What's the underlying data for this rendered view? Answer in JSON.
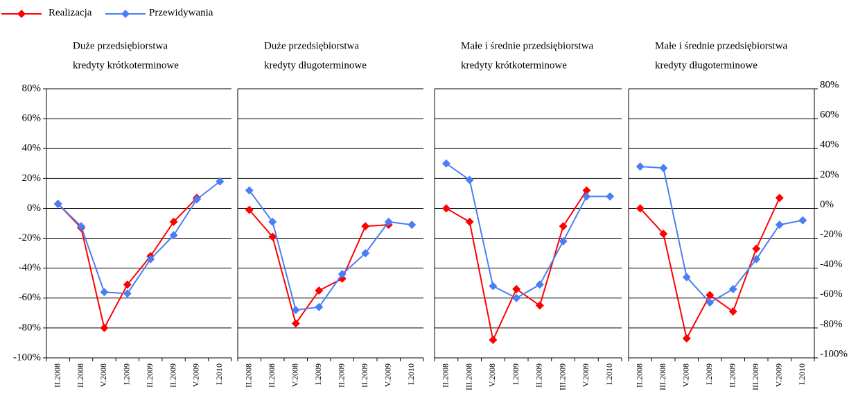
{
  "legend": [
    {
      "name": "Realizacja",
      "color": "#ff0000"
    },
    {
      "name": "Przewidywania",
      "color": "#4a7ef5"
    }
  ],
  "chart_data": [
    {
      "type": "line",
      "title": "Duże przedsiębiorstwa",
      "subtitle": "kredyty krótkoterminowe",
      "categories": [
        "II.2008",
        "II.2008",
        "V.2008",
        "I.2009",
        "II.2009",
        "II.2009",
        "V.2009",
        "I.2010"
      ],
      "series": [
        {
          "color": "#ff0000",
          "values": [
            3,
            -13,
            -80,
            -51,
            -32,
            -9,
            7,
            null
          ]
        },
        {
          "color": "#4a7ef5",
          "values": [
            3,
            -12,
            -56,
            -57,
            -34,
            -18,
            6,
            18
          ]
        }
      ],
      "ylim": [
        -100,
        80
      ],
      "yaxis_side": "left",
      "yticks": [
        {
          "value": 80,
          "label": "80%"
        },
        {
          "value": 60,
          "label": "60%"
        },
        {
          "value": 40,
          "label": "40%"
        },
        {
          "value": 20,
          "label": "20%"
        },
        {
          "value": 0,
          "label": "0%"
        },
        {
          "value": -20,
          "label": "-20%"
        },
        {
          "value": -40,
          "label": "-40%"
        },
        {
          "value": -60,
          "label": "-60%"
        },
        {
          "value": -80,
          "label": "-80%"
        },
        {
          "value": -100,
          "label": "-100%"
        }
      ]
    },
    {
      "type": "line",
      "title": "Duże przedsiębiorstwa",
      "subtitle": "kredyty długoterminowe",
      "categories": [
        "II.2008",
        "II.2008",
        "V.2008",
        "I.2009",
        "II.2009",
        "II.2009",
        "V.2009",
        "I.2010"
      ],
      "series": [
        {
          "color": "#ff0000",
          "values": [
            -1,
            -19,
            -77,
            -55,
            -47,
            -12,
            -11,
            null
          ]
        },
        {
          "color": "#4a7ef5",
          "values": [
            12,
            -9,
            -68,
            -66,
            -44,
            -30,
            -9,
            -11
          ]
        }
      ],
      "ylim": [
        -100,
        80
      ],
      "yticks": [
        80,
        60,
        40,
        20,
        0,
        -20,
        -40,
        -60,
        -80,
        -100
      ]
    },
    {
      "type": "line",
      "title": "Małe i średnie  przedsiębiorstwa",
      "subtitle": "kredyty krótkoterminowe",
      "categories": [
        "II.2008",
        "III.2008",
        "V.2008",
        "I.2009",
        "II.2009",
        "III.2009",
        "V.2009",
        "I.2010"
      ],
      "series": [
        {
          "color": "#ff0000",
          "values": [
            0,
            -9,
            -88,
            -54,
            -65,
            -12,
            12,
            null
          ]
        },
        {
          "color": "#4a7ef5",
          "values": [
            30,
            19,
            -52,
            -60,
            -51,
            -22,
            8,
            8
          ]
        }
      ],
      "ylim": [
        -100,
        80
      ],
      "yticks": [
        80,
        60,
        40,
        20,
        0,
        -20,
        -40,
        -60,
        -80,
        -100
      ]
    },
    {
      "type": "line",
      "title": "Małe i średnie  przedsiębiorstwa",
      "subtitle": "kredyty długoterminowe",
      "categories": [
        "II.2008",
        "III.2008",
        "V.2008",
        "I.2009",
        "II.2009",
        "III.2009",
        "V.2009",
        "I.2010"
      ],
      "series": [
        {
          "color": "#ff0000",
          "values": [
            0,
            -17,
            -87,
            -58,
            -69,
            -27,
            7,
            null
          ]
        },
        {
          "color": "#4a7ef5",
          "values": [
            28,
            27,
            -46,
            -63,
            -54,
            -34,
            -11,
            -8
          ]
        }
      ],
      "ylim": [
        -100,
        80
      ],
      "yaxis_side": "right",
      "yticks": [
        {
          "value": 80,
          "label": "80%"
        },
        {
          "value": 60,
          "label": "60%"
        },
        {
          "value": 40,
          "label": "40%"
        },
        {
          "value": 20,
          "label": "20%"
        },
        {
          "value": 0,
          "label": "0%"
        },
        {
          "value": -20,
          "label": "-20%"
        },
        {
          "value": -40,
          "label": "-40%"
        },
        {
          "value": -60,
          "label": "-60%"
        },
        {
          "value": -80,
          "label": "-80%"
        },
        {
          "value": -100,
          "label": "-100%"
        }
      ]
    }
  ]
}
